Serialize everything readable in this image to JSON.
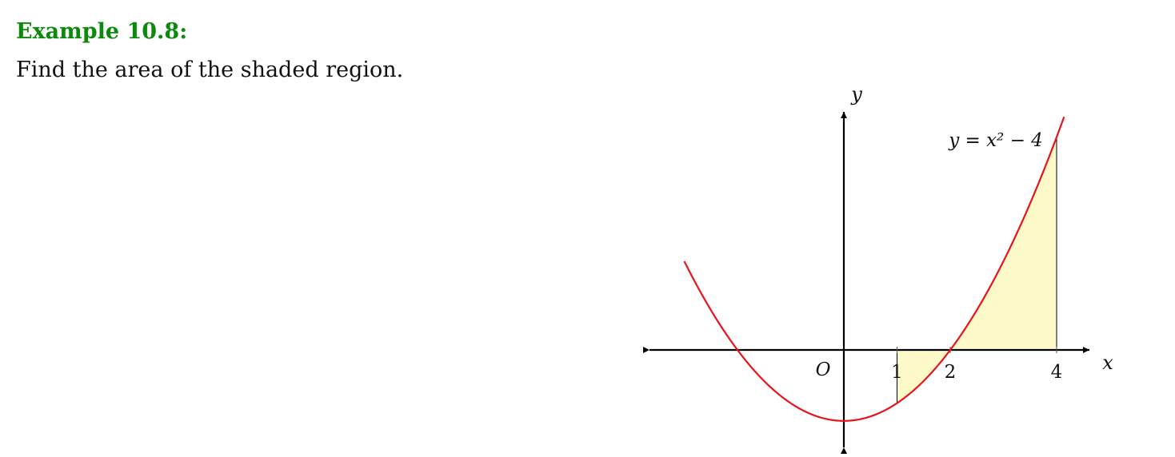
{
  "example": {
    "title": "Example 10.8:",
    "prompt": "Find the area of the shaded region."
  },
  "chart_data": {
    "type": "area",
    "function": "x^2 - 4",
    "curve_label": "y = x² − 4",
    "xlabel": "x",
    "ylabel": "y",
    "origin_label": "O",
    "x_ticks": [
      1,
      2,
      4
    ],
    "x_tick_labels": [
      "1",
      "2",
      "4"
    ],
    "shaded_interval": [
      1,
      4
    ],
    "xlim": [
      -1.5,
      4.3
    ],
    "colors": {
      "curve": "#e8141b",
      "shade": "#fdf9c8",
      "axes": "#000000",
      "title": "#0b8a0b"
    }
  }
}
